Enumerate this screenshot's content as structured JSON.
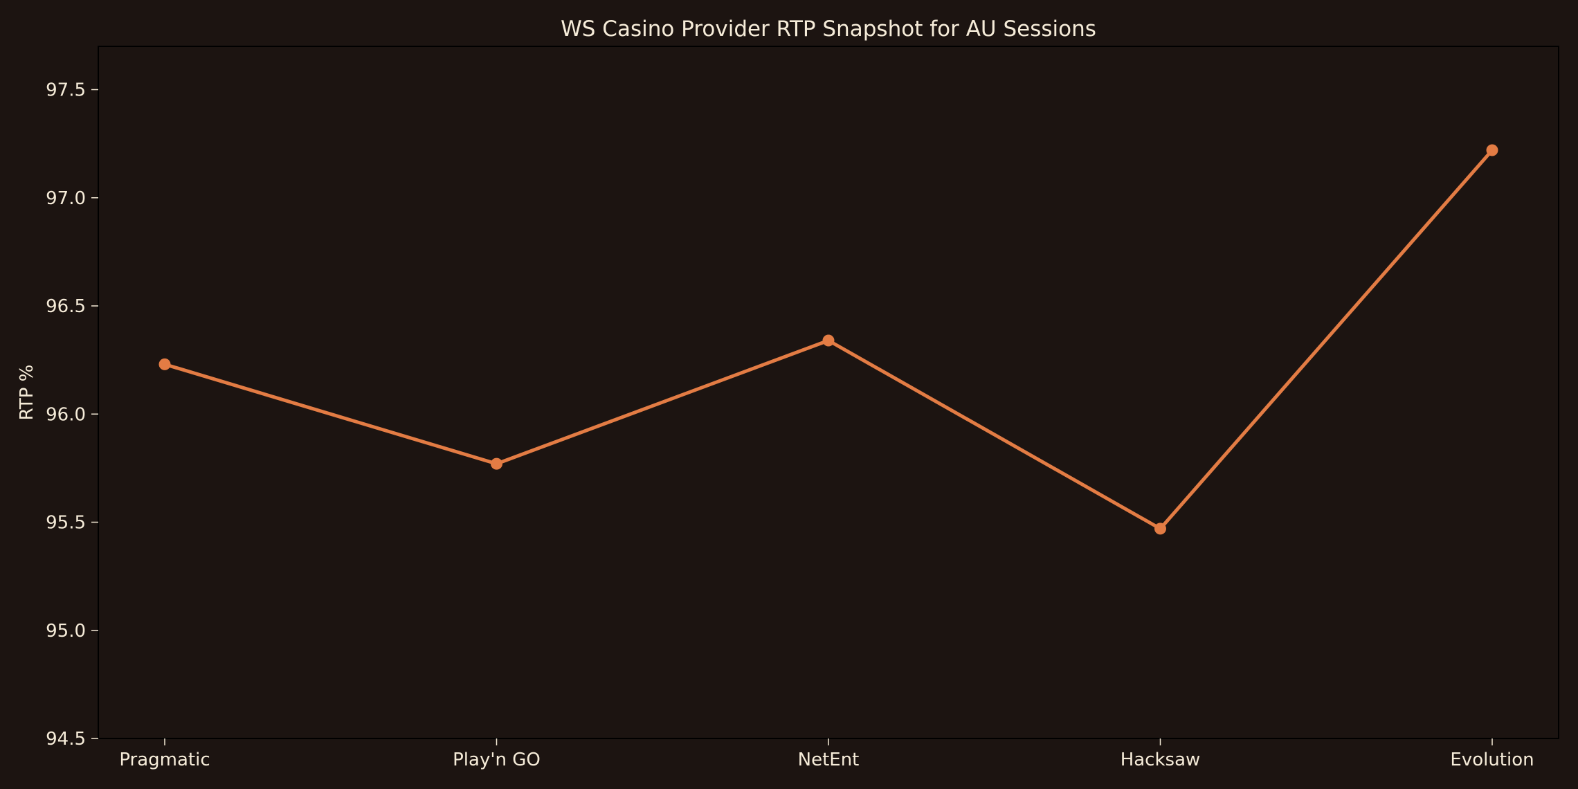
{
  "colors": {
    "background": "#1c1411",
    "text": "#f6ecd9",
    "series_line": "#e37c44",
    "axes_frame": "#000000"
  },
  "chart_data": {
    "type": "line",
    "title": "WS Casino Provider RTP Snapshot for AU Sessions",
    "xlabel": "",
    "ylabel": "RTP %",
    "categories": [
      "Pragmatic",
      "Play'n GO",
      "NetEnt",
      "Hacksaw",
      "Evolution"
    ],
    "series": [
      {
        "values": [
          96.23,
          95.77,
          96.34,
          95.47,
          97.22
        ]
      }
    ],
    "ylim": [
      94.5,
      97.7
    ],
    "yticks": [
      94.5,
      95.0,
      95.5,
      96.0,
      96.5,
      97.0,
      97.5
    ],
    "ytick_labels": [
      "94.5",
      "95.0",
      "95.5",
      "96.0",
      "96.5",
      "97.0",
      "97.5"
    ],
    "grid": false,
    "legend": "none",
    "markers": true
  }
}
